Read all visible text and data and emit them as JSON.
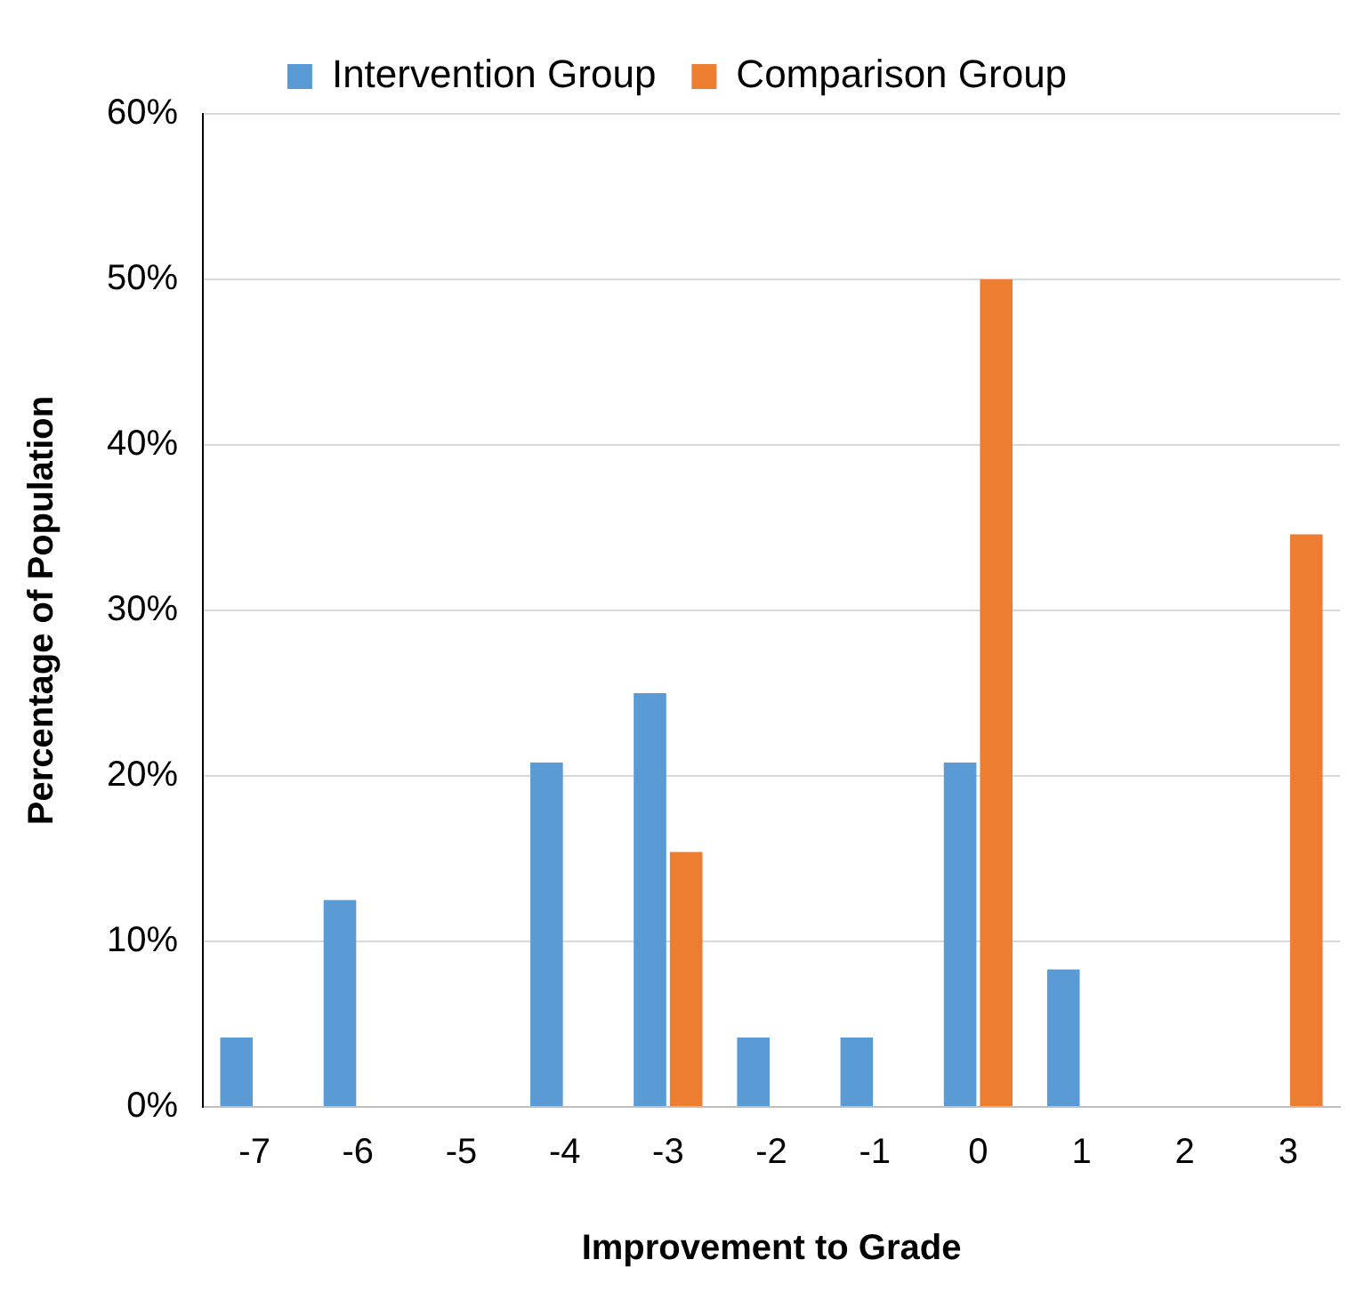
{
  "chart_data": {
    "type": "bar",
    "xlabel": "Improvement to Grade",
    "ylabel": "Percentage of Population",
    "categories": [
      "-7",
      "-6",
      "-5",
      "-4",
      "-3",
      "-2",
      "-1",
      "0",
      "1",
      "2",
      "3"
    ],
    "series": [
      {
        "name": "Intervention Group",
        "color": "#5b9bd5",
        "values": [
          4.2,
          12.5,
          0,
          20.8,
          25,
          4.2,
          4.2,
          20.8,
          8.3,
          0,
          0
        ]
      },
      {
        "name": "Comparison Group",
        "color": "#ed7d31",
        "values": [
          0,
          0,
          0,
          0,
          15.4,
          0,
          0,
          50,
          0,
          0,
          34.6
        ]
      }
    ],
    "ylim": [
      0,
      60
    ],
    "yticks": [
      {
        "value": 0,
        "label": "0%"
      },
      {
        "value": 10,
        "label": "10%"
      },
      {
        "value": 20,
        "label": "20%"
      },
      {
        "value": 30,
        "label": "30%"
      },
      {
        "value": 40,
        "label": "40%"
      },
      {
        "value": 50,
        "label": "50%"
      },
      {
        "value": 60,
        "label": "60%"
      }
    ],
    "grid": "y",
    "legend": "top"
  }
}
